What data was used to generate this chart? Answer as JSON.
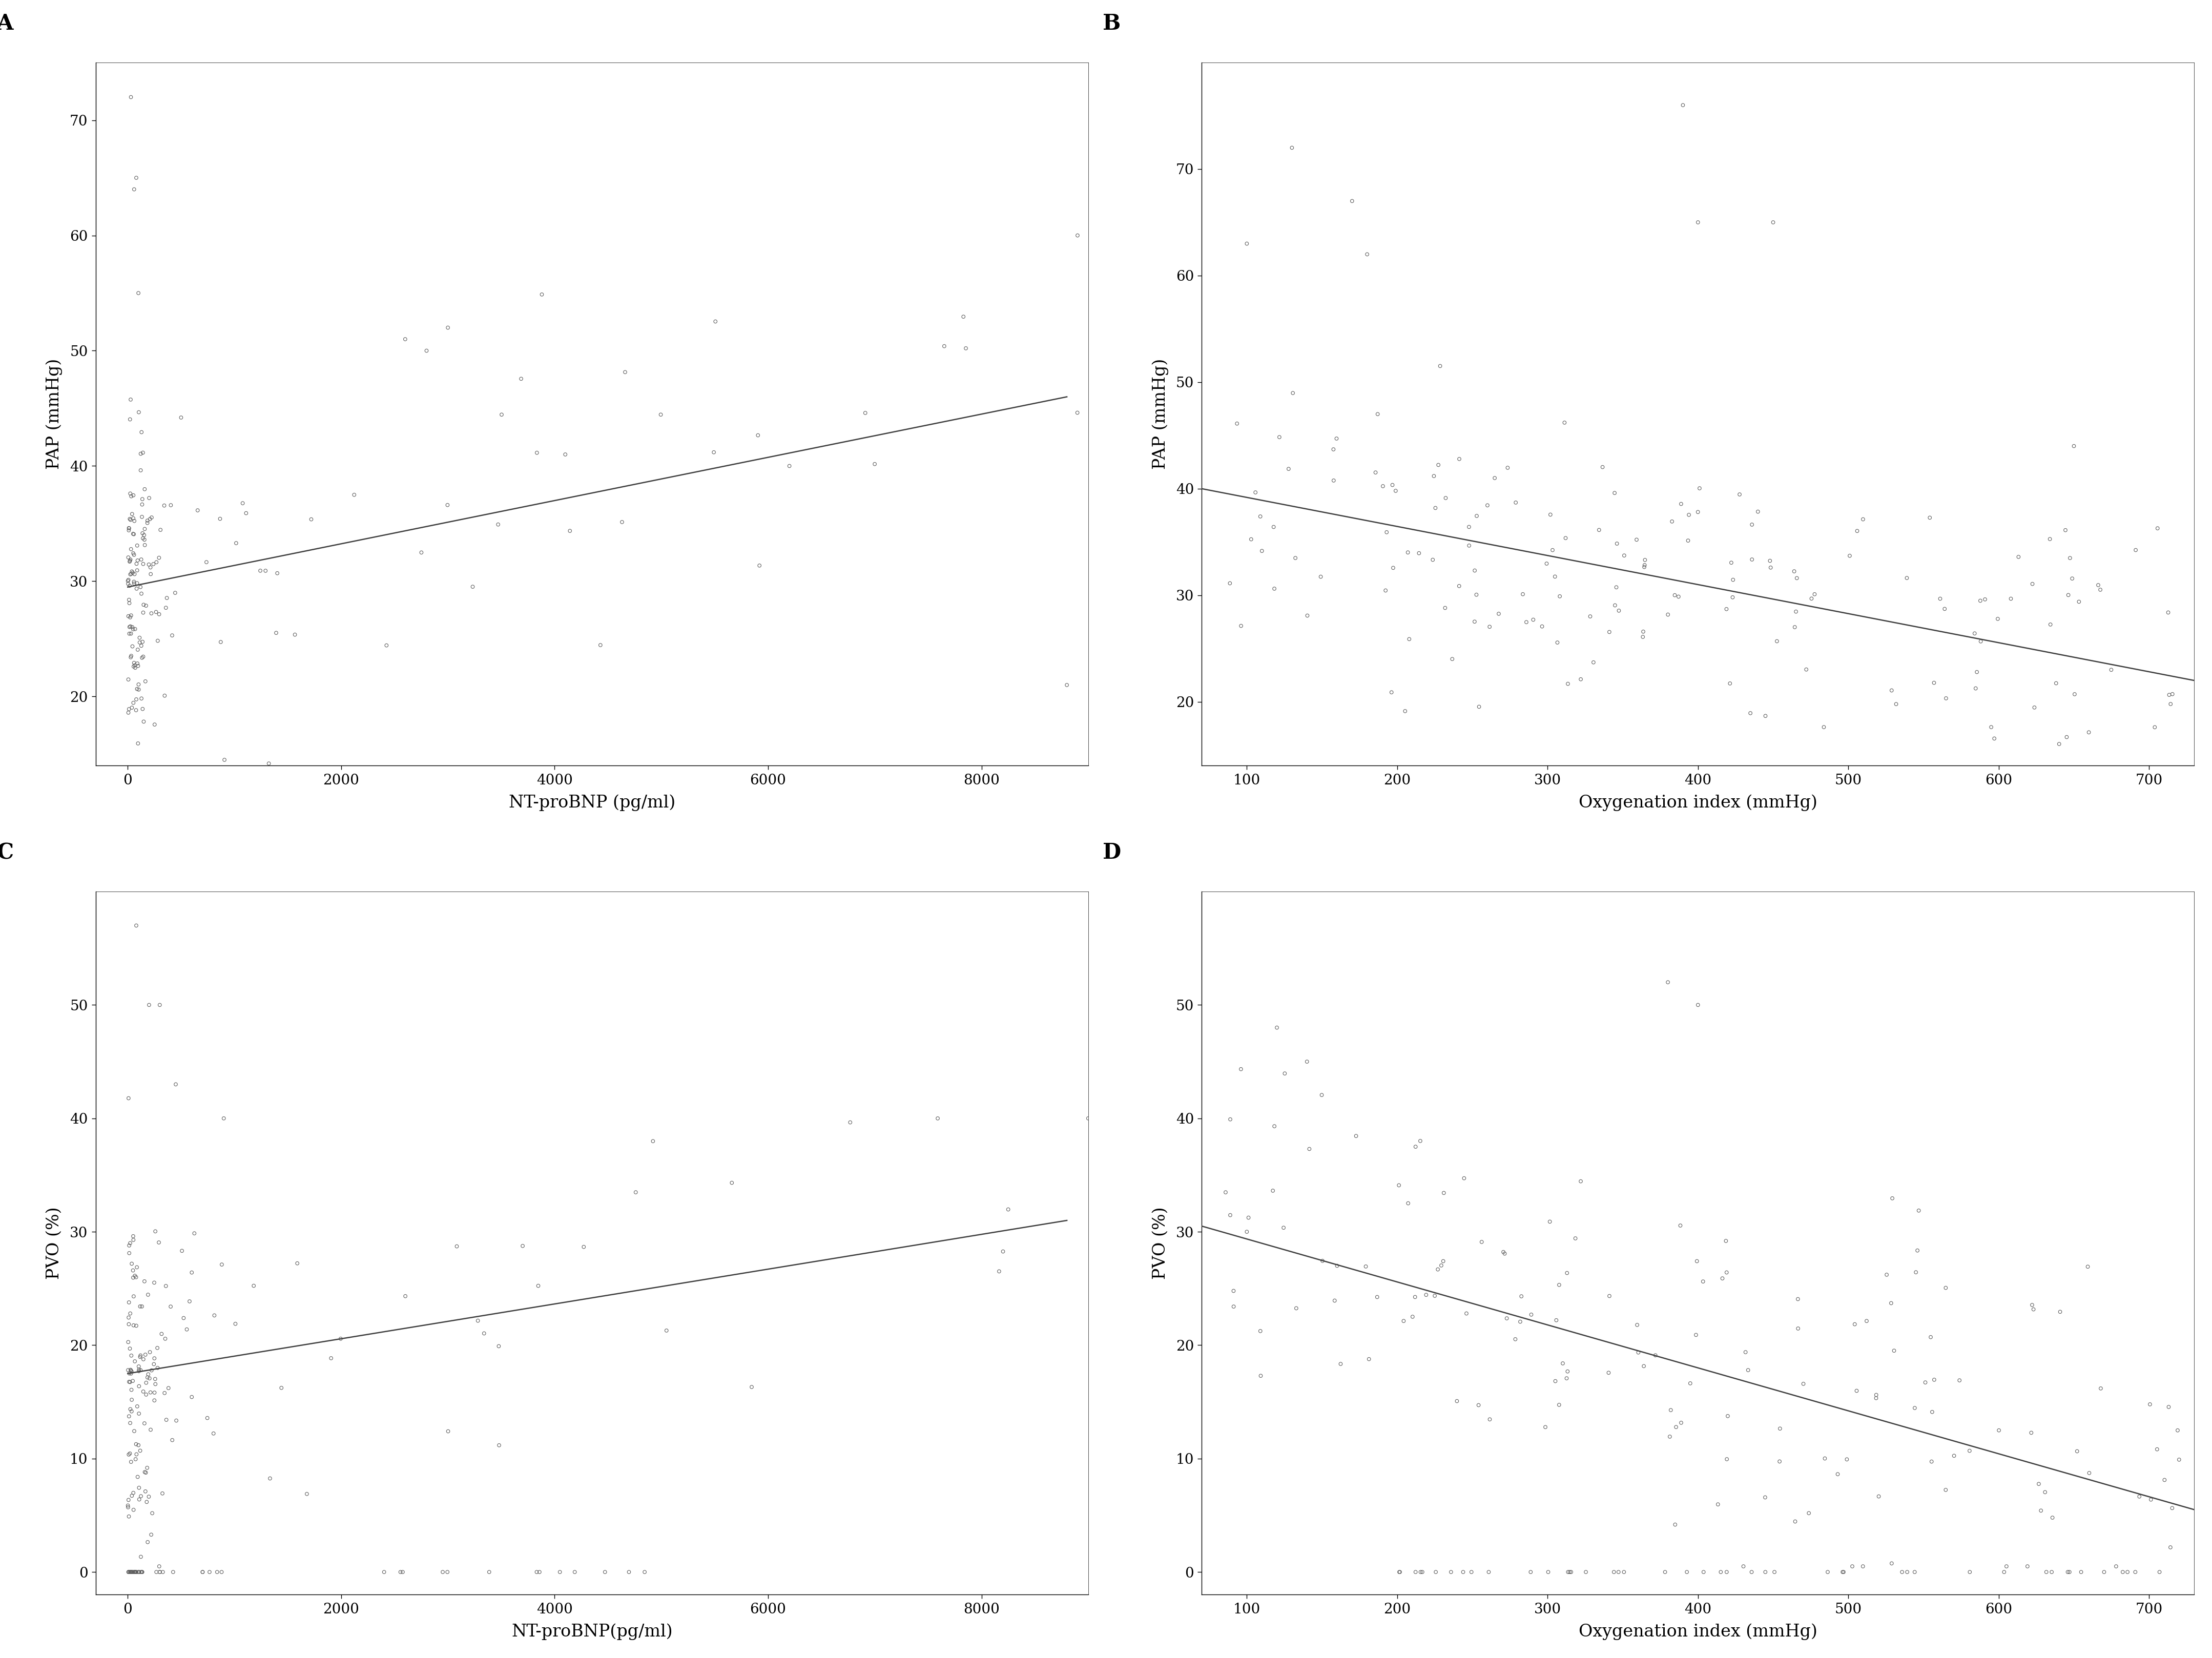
{
  "panel_A": {
    "label": "A",
    "xlabel": "NT-proBNP (pg/ml)",
    "ylabel": "PAP (mmHg)",
    "xlim": [
      -300,
      9000
    ],
    "ylim": [
      14,
      75
    ],
    "xticks": [
      0,
      2000,
      4000,
      6000,
      8000
    ],
    "yticks": [
      20,
      30,
      40,
      50,
      60,
      70
    ],
    "reg_x0": 0,
    "reg_x1": 8800,
    "reg_y0": 29.5,
    "reg_y1": 46.0
  },
  "panel_B": {
    "label": "B",
    "xlabel": "Oxygenation index (mmHg)",
    "ylabel": "PAP (mmHg)",
    "xlim": [
      70,
      730
    ],
    "ylim": [
      14,
      80
    ],
    "xticks": [
      100,
      200,
      300,
      400,
      500,
      600,
      700
    ],
    "yticks": [
      20,
      30,
      40,
      50,
      60,
      70
    ],
    "reg_x0": 70,
    "reg_x1": 730,
    "reg_y0": 40.0,
    "reg_y1": 22.0
  },
  "panel_C": {
    "label": "C",
    "xlabel": "NT-proBNP(pg/ml)",
    "ylabel": "PVO (%)",
    "xlim": [
      -300,
      9000
    ],
    "ylim": [
      -2,
      60
    ],
    "xticks": [
      0,
      2000,
      4000,
      6000,
      8000
    ],
    "yticks": [
      0,
      10,
      20,
      30,
      40,
      50
    ],
    "reg_x0": 0,
    "reg_x1": 8800,
    "reg_y0": 17.5,
    "reg_y1": 31.0
  },
  "panel_D": {
    "label": "D",
    "xlabel": "Oxygenation index (mmHg)",
    "ylabel": "PVO (%)",
    "xlim": [
      70,
      730
    ],
    "ylim": [
      -2,
      60
    ],
    "xticks": [
      100,
      200,
      300,
      400,
      500,
      600,
      700
    ],
    "yticks": [
      0,
      10,
      20,
      30,
      40,
      50
    ],
    "reg_x0": 70,
    "reg_x1": 730,
    "reg_y0": 30.5,
    "reg_y1": 5.5
  },
  "marker_color": "#606060",
  "marker_size": 22,
  "marker_lw": 0.8,
  "line_color": "#404040",
  "line_width": 1.8,
  "bg_color": "#ffffff",
  "label_fontsize": 24,
  "tick_fontsize": 20,
  "panel_label_fontsize": 30
}
